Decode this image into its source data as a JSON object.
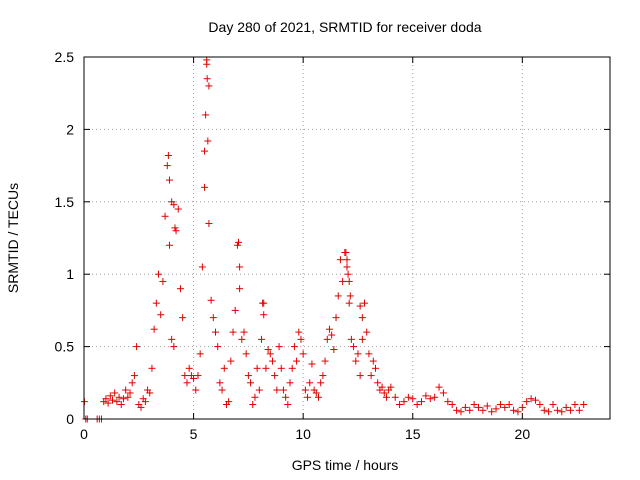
{
  "chart_data": {
    "type": "scatter",
    "title": "Day 280 of 2021, SRMTID for receiver doda",
    "xlabel": "GPS time / hours",
    "ylabel": "SRMTID / TECUs",
    "xlim": [
      0,
      24
    ],
    "ylim": [
      0,
      2.5
    ],
    "xticks": [
      0,
      5,
      10,
      15,
      20
    ],
    "xtick_labels": [
      "0",
      "5",
      "10",
      "15",
      "20"
    ],
    "yticks": [
      0,
      0.5,
      1,
      1.5,
      2,
      2.5
    ],
    "ytick_labels": [
      "0",
      "0.5",
      "1",
      "1.5",
      "2",
      "2.5"
    ],
    "grid": true,
    "marker": "+",
    "color": "#e00000",
    "series": [
      {
        "name": "doda",
        "x": [
          0.02,
          0.08,
          0.15,
          0.6,
          0.7,
          0.8,
          0.9,
          1.0,
          1.1,
          1.2,
          1.3,
          1.4,
          1.5,
          1.6,
          1.7,
          1.8,
          1.9,
          2.0,
          2.1,
          2.2,
          2.3,
          2.4,
          2.5,
          2.6,
          2.7,
          2.8,
          2.9,
          3.0,
          3.1,
          3.2,
          3.3,
          3.4,
          3.5,
          3.6,
          3.7,
          3.8,
          3.9,
          4.0,
          4.1,
          4.2,
          4.3,
          4.4,
          4.5,
          4.6,
          4.7,
          4.8,
          4.9,
          5.0,
          5.1,
          5.2,
          5.3,
          5.4,
          5.5,
          5.6,
          5.7,
          5.8,
          5.9,
          6.0,
          6.1,
          6.2,
          6.3,
          6.4,
          6.5,
          6.6,
          6.7,
          6.8,
          6.9,
          7.0,
          7.1,
          7.2,
          7.3,
          7.4,
          7.5,
          7.6,
          7.7,
          7.8,
          7.9,
          8.0,
          8.1,
          8.2,
          8.3,
          8.4,
          8.5,
          8.6,
          8.7,
          8.8,
          8.9,
          9.0,
          9.1,
          9.2,
          9.3,
          9.4,
          9.5,
          9.6,
          9.7,
          9.8,
          9.9,
          10.0,
          10.1,
          10.2,
          10.3,
          10.4,
          10.5,
          10.6,
          10.7,
          10.8,
          10.9,
          11.0,
          11.1,
          11.2,
          11.3,
          11.4,
          11.5,
          11.6,
          11.7,
          11.8,
          11.9,
          12.0,
          12.1,
          12.2,
          12.3,
          12.4,
          12.5,
          12.6,
          12.7,
          12.8,
          12.9,
          13.0,
          13.1,
          13.2,
          13.3,
          13.4,
          13.5,
          13.6,
          13.7,
          13.8,
          13.9,
          14.0,
          14.2,
          14.4,
          14.6,
          14.8,
          15.0,
          15.2,
          15.4,
          15.6,
          15.8,
          16.0,
          16.2,
          16.4,
          16.6,
          16.8,
          17.0,
          17.2,
          17.4,
          17.6,
          17.8,
          18.0,
          18.2,
          18.4,
          18.6,
          18.8,
          19.0,
          19.2,
          19.4,
          19.6,
          19.8,
          20.0,
          20.2,
          20.4,
          20.6,
          20.8,
          21.0,
          21.2,
          21.4,
          21.6,
          21.8,
          22.0,
          22.2,
          22.4,
          22.6,
          22.8,
          3.85,
          3.9,
          4.0,
          4.1,
          4.15,
          5.5,
          5.55,
          5.6,
          5.62,
          5.65,
          5.7,
          7.05,
          7.1,
          8.15,
          8.2,
          11.95,
          12.0,
          12.05,
          12.1,
          12.15,
          12.6,
          12.7
        ],
        "y": [
          0.12,
          0.0,
          0.0,
          0.0,
          0.0,
          0.0,
          0.12,
          0.14,
          0.11,
          0.16,
          0.13,
          0.18,
          0.12,
          0.15,
          0.1,
          0.14,
          0.2,
          0.15,
          0.18,
          0.25,
          0.3,
          0.5,
          0.1,
          0.08,
          0.14,
          0.12,
          0.2,
          0.18,
          0.35,
          0.62,
          0.8,
          1.0,
          0.72,
          0.95,
          1.4,
          1.75,
          1.2,
          0.55,
          0.5,
          1.3,
          1.45,
          0.9,
          0.7,
          0.3,
          0.25,
          0.35,
          0.3,
          0.28,
          0.2,
          0.3,
          0.45,
          1.05,
          1.6,
          2.45,
          2.3,
          0.82,
          0.7,
          0.6,
          0.5,
          0.25,
          0.2,
          0.35,
          0.1,
          0.12,
          0.4,
          0.6,
          0.75,
          1.2,
          0.9,
          0.55,
          0.6,
          0.45,
          0.3,
          0.25,
          0.1,
          0.15,
          0.35,
          0.2,
          0.55,
          0.8,
          0.35,
          0.48,
          0.45,
          0.4,
          0.3,
          0.2,
          0.5,
          0.35,
          0.2,
          0.15,
          0.1,
          0.25,
          0.35,
          0.5,
          0.4,
          0.6,
          0.55,
          0.45,
          0.2,
          0.15,
          0.25,
          0.38,
          0.2,
          0.18,
          0.15,
          0.25,
          0.3,
          0.4,
          0.55,
          0.62,
          0.58,
          0.48,
          0.7,
          0.85,
          1.1,
          0.95,
          1.15,
          1.05,
          0.8,
          0.55,
          0.5,
          0.4,
          0.45,
          0.3,
          0.55,
          0.8,
          0.6,
          0.45,
          0.3,
          0.4,
          0.35,
          0.25,
          0.2,
          0.22,
          0.18,
          0.15,
          0.2,
          0.22,
          0.15,
          0.1,
          0.12,
          0.15,
          0.14,
          0.1,
          0.12,
          0.16,
          0.14,
          0.15,
          0.22,
          0.18,
          0.12,
          0.1,
          0.06,
          0.05,
          0.08,
          0.06,
          0.1,
          0.08,
          0.06,
          0.09,
          0.05,
          0.07,
          0.1,
          0.08,
          0.1,
          0.06,
          0.05,
          0.08,
          0.12,
          0.14,
          0.13,
          0.1,
          0.06,
          0.05,
          0.1,
          0.06,
          0.05,
          0.08,
          0.06,
          0.1,
          0.06,
          0.1,
          1.82,
          1.65,
          1.5,
          1.48,
          1.32,
          1.85,
          2.1,
          2.48,
          2.35,
          1.92,
          1.35,
          1.22,
          1.05,
          0.8,
          0.72,
          1.15,
          1.1,
          1.0,
          0.95,
          0.85,
          0.78,
          0.7
        ]
      }
    ]
  }
}
